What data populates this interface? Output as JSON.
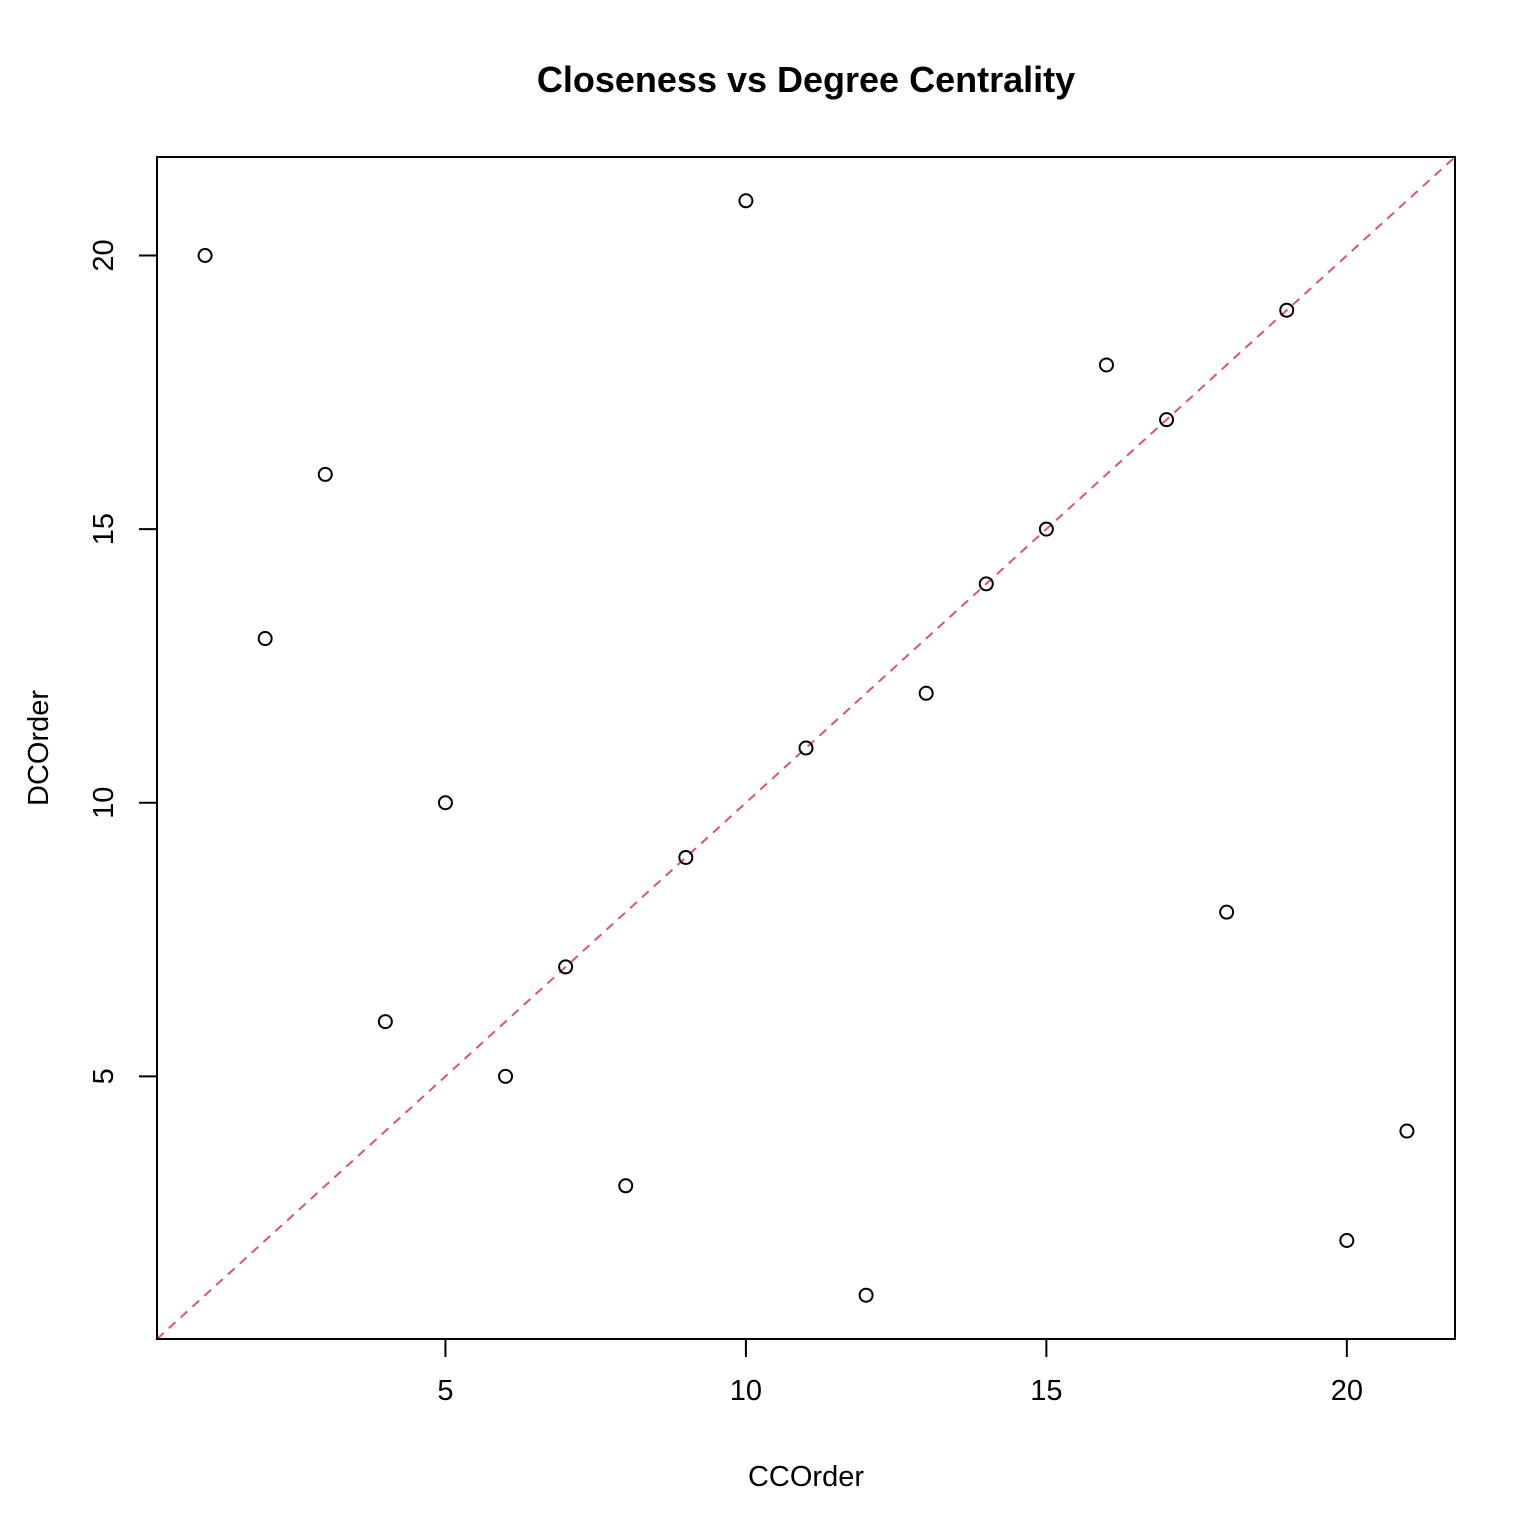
{
  "chart_data": {
    "type": "scatter",
    "title": "Closeness vs Degree Centrality",
    "xlabel": "CCOrder",
    "ylabel": "DCOrder",
    "xlim": [
      0.2,
      21.8
    ],
    "ylim": [
      0.2,
      21.8
    ],
    "x_ticks": [
      5,
      10,
      15,
      20
    ],
    "y_ticks": [
      5,
      10,
      15,
      20
    ],
    "grid": false,
    "points": [
      {
        "x": 1,
        "y": 20
      },
      {
        "x": 2,
        "y": 13
      },
      {
        "x": 3,
        "y": 16
      },
      {
        "x": 4,
        "y": 6
      },
      {
        "x": 5,
        "y": 10
      },
      {
        "x": 6,
        "y": 5
      },
      {
        "x": 7,
        "y": 7
      },
      {
        "x": 8,
        "y": 3
      },
      {
        "x": 9,
        "y": 9
      },
      {
        "x": 10,
        "y": 21
      },
      {
        "x": 11,
        "y": 11
      },
      {
        "x": 12,
        "y": 1
      },
      {
        "x": 13,
        "y": 12
      },
      {
        "x": 14,
        "y": 14
      },
      {
        "x": 15,
        "y": 15
      },
      {
        "x": 16,
        "y": 18
      },
      {
        "x": 17,
        "y": 17
      },
      {
        "x": 18,
        "y": 8
      },
      {
        "x": 19,
        "y": 19
      },
      {
        "x": 20,
        "y": 2
      },
      {
        "x": 21,
        "y": 4
      }
    ],
    "reference_line": {
      "intercept": 0,
      "slope": 1,
      "style": "dashed",
      "color": "#DF536B"
    },
    "point_color": "#000000"
  }
}
